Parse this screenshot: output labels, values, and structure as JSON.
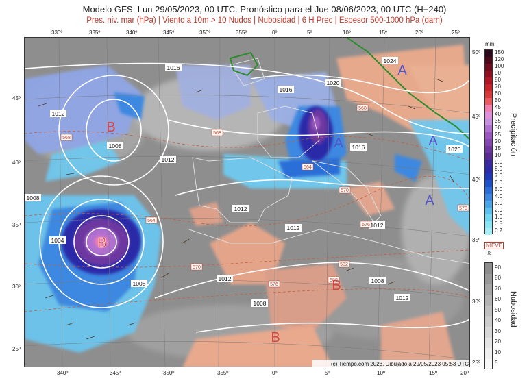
{
  "header": {
    "title": "Modelo GFS. Lun 29/05/2023, 00 UTC. Pronóstico para el Jue 08/06/2023, 00 UTC (H+240)",
    "subtitle": "Pres. niv. mar (hPa) | Viento a 10m > 10 Nudos | Nubosidad | 6 H Prec | Espesor 500-1000 hPa (dam)"
  },
  "axes": {
    "top_lon": [
      "330º",
      "335º",
      "340º",
      "345º",
      "350º",
      "355º",
      "0º",
      "5º",
      "10º",
      "15º",
      "20º",
      "25º"
    ],
    "bottom_lon": [
      "340º",
      "345º",
      "350º",
      "355º",
      "0º",
      "5º",
      "10º",
      "15º",
      "20º"
    ],
    "left_lat": [
      "45º",
      "40º",
      "35º",
      "30º",
      "25º"
    ],
    "right_lat": [
      "50º",
      "45º",
      "40º",
      "35º",
      "30º",
      "25º"
    ]
  },
  "pressure_centers": [
    {
      "type": "B",
      "label": "B"
    },
    {
      "type": "B",
      "label": "B"
    },
    {
      "type": "B",
      "label": "B"
    },
    {
      "type": "B",
      "label": "B"
    },
    {
      "type": "A",
      "label": "A"
    },
    {
      "type": "A",
      "label": "A"
    },
    {
      "type": "A",
      "label": "A"
    },
    {
      "type": "A",
      "label": "A"
    }
  ],
  "isobar_labels": [
    "1012",
    "1008",
    "1016",
    "1016",
    "1020",
    "1024",
    "1016",
    "1020",
    "1012",
    "1012",
    "1008",
    "1004",
    "1008",
    "1012",
    "1012",
    "1008",
    "1012",
    "1008",
    "1012"
  ],
  "thickness_labels": [
    "568",
    "568",
    "568",
    "564",
    "564",
    "570",
    "570",
    "576",
    "570",
    "576",
    "582",
    "588"
  ],
  "credit": "(c) Tiempo.com 2023. Dibujado a 29/05/2023 05:53 UTC",
  "precip_scale": {
    "unit": "mm",
    "title": "Precipitación",
    "values": [
      "150",
      "120",
      "100",
      "90",
      "80",
      "70",
      "60",
      "50",
      "45",
      "40",
      "35",
      "30",
      "25",
      "20",
      "15",
      "10",
      "9.0",
      "8.0",
      "7.0",
      "6.0",
      "5.0",
      "4.0",
      "3.0",
      "2.0",
      "1.0",
      "0.5",
      "0.2"
    ],
    "colors": [
      "#2a0a1a",
      "#4a0a1c",
      "#6e0d1d",
      "#8f1020",
      "#b01524",
      "#c8242c",
      "#d83a3c",
      "#e85a60",
      "#f07fb0",
      "#e090d8",
      "#c890e0",
      "#b070d0",
      "#9a58c0",
      "#8448b0",
      "#6c38a0",
      "#582c90",
      "#3a2aa0",
      "#2c2ca8",
      "#1f38b8",
      "#1e52c8",
      "#2b6ed8",
      "#3c88e0",
      "#4aa4e8",
      "#5cc0ee",
      "#70d6f2",
      "#8ae4f4",
      "#a8eef6"
    ]
  },
  "cloud_scale": {
    "unit": "%",
    "title": "Nubosidad",
    "snow_label": "NIEVE",
    "values": [
      "90",
      "80",
      "70",
      "60",
      "50",
      "40",
      "30",
      "20",
      "10",
      "5"
    ],
    "colors": [
      "#8c8c8c",
      "#999999",
      "#a6a6a6",
      "#b3b3b3",
      "#c0c0c0",
      "#cccccc",
      "#d8d8d8",
      "#e4e4e4",
      "#efefef",
      "#f8f8f8"
    ]
  }
}
